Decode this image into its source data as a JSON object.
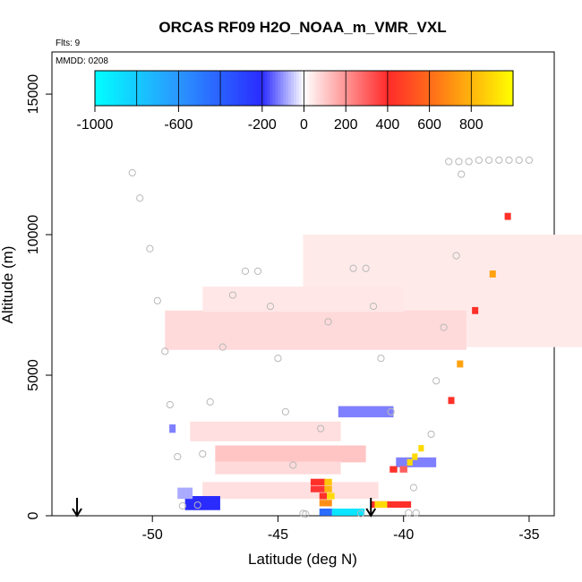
{
  "chart_data": {
    "type": "heatmap",
    "title": "ORCAS RF09 H2O_NOAA_m_VMR_VXL",
    "flights_label": "Flts: 9",
    "date_label": "MMDD: 0208",
    "xlabel": "Latitude (deg N)",
    "ylabel": "Altitude (m)",
    "xlim": [
      -54,
      -34
    ],
    "ylim": [
      0,
      16500
    ],
    "x_ticks": [
      -50,
      -45,
      -40,
      -35
    ],
    "x_tick_labels": [
      "-50",
      "-45",
      "-40",
      "-35"
    ],
    "y_ticks": [
      0,
      5000,
      10000,
      15000
    ],
    "y_tick_labels": [
      "0",
      "5000",
      "10000",
      "15000"
    ],
    "colorbar": {
      "range": [
        -1000,
        1000
      ],
      "tick_values": [
        -1000,
        -600,
        -200,
        0,
        200,
        400,
        600,
        800
      ],
      "tick_labels": [
        "-1000",
        "-600",
        "-200",
        "0",
        "200",
        "400",
        "600",
        "800"
      ],
      "colors": [
        "#00ffff",
        "#2b96ff",
        "#2a2bff",
        "#ffffff",
        "#ff2a2a",
        "#ff6a1a",
        "#ffd400",
        "#ffff00"
      ]
    },
    "arrows_lat": [
      -53,
      -41.3
    ],
    "cells": [
      {
        "lat": -37.5,
        "alt": 8000,
        "w": 13.0,
        "h": 4000,
        "v": 40
      },
      {
        "lat": -43.5,
        "alt": 6600,
        "w": 12.0,
        "h": 1400,
        "v": 70
      },
      {
        "lat": -44,
        "alt": 7700,
        "w": 8.0,
        "h": 900,
        "v": 45
      },
      {
        "lat": -45.5,
        "alt": 3000,
        "w": 6.0,
        "h": 700,
        "v": 60
      },
      {
        "lat": -44.5,
        "alt": 2200,
        "w": 6.0,
        "h": 600,
        "v": 110
      },
      {
        "lat": -45,
        "alt": 1700,
        "w": 5.0,
        "h": 450,
        "v": 70
      },
      {
        "lat": -44.5,
        "alt": 900,
        "w": 7.0,
        "h": 600,
        "v": 60
      },
      {
        "lat": -41.5,
        "alt": 3700,
        "w": 2.2,
        "h": 400,
        "v": -120
      },
      {
        "lat": -39.5,
        "alt": 1900,
        "w": 1.6,
        "h": 350,
        "v": -120
      },
      {
        "lat": -48,
        "alt": 450,
        "w": 1.4,
        "h": 500,
        "v": -200
      },
      {
        "lat": -48.7,
        "alt": 800,
        "w": 0.6,
        "h": 400,
        "v": -80
      },
      {
        "lat": -49.2,
        "alt": 3100,
        "w": 0.25,
        "h": 300,
        "v": -120
      },
      {
        "lat": -42.2,
        "alt": 130,
        "w": 1.3,
        "h": 250,
        "v": -900
      },
      {
        "lat": -43.1,
        "alt": 130,
        "w": 0.5,
        "h": 250,
        "v": -450
      },
      {
        "lat": -43.4,
        "alt": 1200,
        "w": 0.6,
        "h": 230,
        "v": 420
      },
      {
        "lat": -43.4,
        "alt": 950,
        "w": 0.6,
        "h": 230,
        "v": 380
      },
      {
        "lat": -43.2,
        "alt": 700,
        "w": 0.3,
        "h": 230,
        "v": 420
      },
      {
        "lat": -43.0,
        "alt": 1200,
        "w": 0.3,
        "h": 230,
        "v": 850
      },
      {
        "lat": -43.0,
        "alt": 950,
        "w": 0.3,
        "h": 230,
        "v": 800
      },
      {
        "lat": -42.9,
        "alt": 700,
        "w": 0.3,
        "h": 230,
        "v": 900
      },
      {
        "lat": -43.1,
        "alt": 450,
        "w": 0.5,
        "h": 230,
        "v": 700
      },
      {
        "lat": -40.5,
        "alt": 400,
        "w": 1.6,
        "h": 230,
        "v": 420
      },
      {
        "lat": -40.9,
        "alt": 400,
        "w": 0.5,
        "h": 230,
        "v": 900
      },
      {
        "lat": -40.4,
        "alt": 1650,
        "w": 0.3,
        "h": 230,
        "v": 420
      },
      {
        "lat": -40.0,
        "alt": 1650,
        "w": 0.3,
        "h": 230,
        "v": 300
      },
      {
        "lat": -39.75,
        "alt": 1900,
        "w": 0.22,
        "h": 230,
        "v": 900
      },
      {
        "lat": -39.55,
        "alt": 2100,
        "w": 0.22,
        "h": 230,
        "v": 900
      },
      {
        "lat": -39.3,
        "alt": 2400,
        "w": 0.22,
        "h": 230,
        "v": 900
      },
      {
        "lat": -38.1,
        "alt": 4100,
        "w": 0.25,
        "h": 250,
        "v": 420
      },
      {
        "lat": -37.75,
        "alt": 5400,
        "w": 0.25,
        "h": 250,
        "v": 750
      },
      {
        "lat": -37.15,
        "alt": 7300,
        "w": 0.25,
        "h": 250,
        "v": 420
      },
      {
        "lat": -36.45,
        "alt": 8600,
        "w": 0.25,
        "h": 250,
        "v": 750
      },
      {
        "lat": -35.85,
        "alt": 10650,
        "w": 0.25,
        "h": 250,
        "v": 420
      }
    ],
    "points": [
      [
        -50.8,
        12200
      ],
      [
        -50.5,
        11300
      ],
      [
        -50.1,
        9500
      ],
      [
        -49.8,
        7650
      ],
      [
        -49.5,
        5850
      ],
      [
        -49.3,
        3950
      ],
      [
        -49.0,
        2100
      ],
      [
        -48.0,
        2200
      ],
      [
        -47.7,
        4050
      ],
      [
        -47.2,
        6000
      ],
      [
        -46.8,
        7850
      ],
      [
        -46.3,
        8700
      ],
      [
        -45.8,
        8700
      ],
      [
        -45.3,
        7450
      ],
      [
        -45.0,
        5600
      ],
      [
        -44.7,
        3700
      ],
      [
        -44.4,
        1800
      ],
      [
        -44.0,
        80
      ],
      [
        -43.3,
        3100
      ],
      [
        -43.0,
        6900
      ],
      [
        -42.0,
        8800
      ],
      [
        -41.5,
        8800
      ],
      [
        -41.2,
        7450
      ],
      [
        -40.9,
        5600
      ],
      [
        -40.5,
        3700
      ],
      [
        -39.5,
        100
      ],
      [
        -38.9,
        2900
      ],
      [
        -38.7,
        4800
      ],
      [
        -38.4,
        6700
      ],
      [
        -37.9,
        9250
      ],
      [
        -39.8,
        100
      ],
      [
        -39.6,
        1000
      ],
      [
        -48.8,
        350
      ],
      [
        -48.2,
        380
      ],
      [
        -43.9,
        60
      ],
      [
        -41.7,
        80
      ],
      [
        -38.2,
        12600
      ],
      [
        -37.8,
        12600
      ],
      [
        -37.4,
        12600
      ],
      [
        -37.0,
        12650
      ],
      [
        -36.6,
        12650
      ],
      [
        -36.2,
        12650
      ],
      [
        -35.8,
        12650
      ],
      [
        -35.4,
        12650
      ],
      [
        -35.0,
        12650
      ],
      [
        -37.7,
        12150
      ]
    ]
  }
}
